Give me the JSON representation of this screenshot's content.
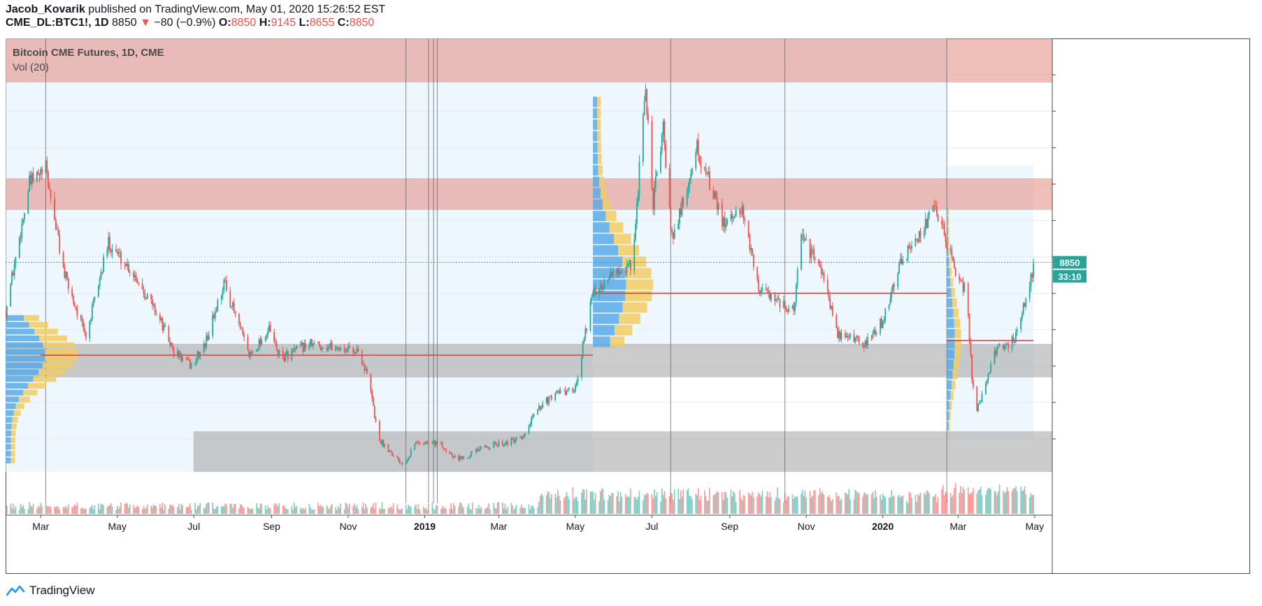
{
  "header": {
    "author": "Jacob_Kovarik",
    "published_text": "published on TradingView.com, May 01, 2020 15:26:52 EST",
    "symbol": "CME_DL:BTC1!, 1D",
    "last": "8850",
    "change_arrow": "▼",
    "change": "−80 (−0.9%)",
    "o_label": "O:",
    "o_value": "8850",
    "h_label": "H:",
    "h_value": "9145",
    "l_label": "L:",
    "l_value": "8655",
    "c_label": "C:",
    "c_value": "8850"
  },
  "legend": {
    "series_title": "Bitcoin CME Futures, 1D, CME",
    "volume_title": "Vol (20)"
  },
  "price_badge": {
    "value": "8850",
    "countdown": "33:10"
  },
  "footer": {
    "brand": "TradingView"
  },
  "colors": {
    "up": "#26a69a",
    "down": "#ef5350",
    "zone_red": "#e58b80",
    "zone_gray": "#a3a3a3",
    "vp_blue": "#5aaae8",
    "vp_yellow": "#f2cc62",
    "poc_line": "#e53935",
    "badge": "#26a69a"
  },
  "chart_data": {
    "type": "candlestick",
    "symbol": "Bitcoin CME Futures, 1D, CME",
    "x_tick_labels": [
      "Mar",
      "May",
      "Jul",
      "Sep",
      "Nov",
      "2019",
      "Mar",
      "May",
      "Jul",
      "Sep",
      "Nov",
      "2020",
      "Mar",
      "May"
    ],
    "x_range": [
      "2018-02-01",
      "2020-05-15"
    ],
    "y_range": [
      3000,
      15000
    ],
    "price_waypoints": [
      [
        "2018-02-01",
        7500
      ],
      [
        "2018-02-20",
        11000
      ],
      [
        "2018-03-05",
        11400
      ],
      [
        "2018-03-20",
        8500
      ],
      [
        "2018-04-06",
        6800
      ],
      [
        "2018-04-24",
        9400
      ],
      [
        "2018-05-15",
        8500
      ],
      [
        "2018-06-01",
        7500
      ],
      [
        "2018-06-15",
        6400
      ],
      [
        "2018-06-29",
        6000
      ],
      [
        "2018-07-10",
        6600
      ],
      [
        "2018-07-25",
        8300
      ],
      [
        "2018-08-14",
        6300
      ],
      [
        "2018-08-30",
        7000
      ],
      [
        "2018-09-08",
        6200
      ],
      [
        "2018-09-30",
        6600
      ],
      [
        "2018-10-25",
        6500
      ],
      [
        "2018-11-10",
        6400
      ],
      [
        "2018-11-18",
        5500
      ],
      [
        "2018-11-25",
        4000
      ],
      [
        "2018-12-15",
        3300
      ],
      [
        "2018-12-25",
        3900
      ],
      [
        "2019-01-10",
        3900
      ],
      [
        "2019-01-28",
        3450
      ],
      [
        "2019-02-20",
        3800
      ],
      [
        "2019-03-20",
        4000
      ],
      [
        "2019-04-02",
        4900
      ],
      [
        "2019-04-15",
        5200
      ],
      [
        "2019-05-01",
        5400
      ],
      [
        "2019-05-14",
        7900
      ],
      [
        "2019-05-31",
        8600
      ],
      [
        "2019-06-15",
        8800
      ],
      [
        "2019-06-26",
        13500
      ],
      [
        "2019-07-02",
        10500
      ],
      [
        "2019-07-10",
        12500
      ],
      [
        "2019-07-17",
        9500
      ],
      [
        "2019-08-06",
        12000
      ],
      [
        "2019-08-28",
        9800
      ],
      [
        "2019-09-10",
        10400
      ],
      [
        "2019-09-24",
        8200
      ],
      [
        "2019-10-22",
        7500
      ],
      [
        "2019-10-27",
        9600
      ],
      [
        "2019-11-15",
        8500
      ],
      [
        "2019-11-25",
        6900
      ],
      [
        "2019-12-17",
        6600
      ],
      [
        "2019-12-31",
        7200
      ],
      [
        "2020-01-14",
        8700
      ],
      [
        "2020-02-12",
        10400
      ],
      [
        "2020-02-27",
        8700
      ],
      [
        "2020-03-08",
        8000
      ],
      [
        "2020-03-12",
        5600
      ],
      [
        "2020-03-16",
        4800
      ],
      [
        "2020-03-31",
        6400
      ],
      [
        "2020-04-15",
        6700
      ],
      [
        "2020-04-29",
        8600
      ],
      [
        "2020-04-30",
        8850
      ]
    ],
    "zones": [
      {
        "label": "resistance-top",
        "from": "2018-02-01",
        "to": "2020-05-15",
        "low": 13800,
        "high": 15300,
        "color": "red"
      },
      {
        "label": "resistance-mid",
        "from": "2018-02-01",
        "to": "2020-05-15",
        "low": 10300,
        "high": 11150,
        "color": "red"
      },
      {
        "label": "support-mid",
        "from": "2018-02-01",
        "to": "2020-05-15",
        "low": 5700,
        "high": 6600,
        "color": "gray"
      },
      {
        "label": "support-low",
        "from": "2018-07-01",
        "to": "2020-05-15",
        "low": 3100,
        "high": 4200,
        "color": "gray"
      }
    ],
    "poc_lines": [
      {
        "from": "2018-03-01",
        "to": "2019-05-15",
        "price": 6300
      },
      {
        "from": "2019-05-15",
        "to": "2020-02-21",
        "price": 8000
      },
      {
        "from": "2020-02-21",
        "to": "2020-04-30",
        "price": 6700
      }
    ],
    "last_price": 8850
  }
}
